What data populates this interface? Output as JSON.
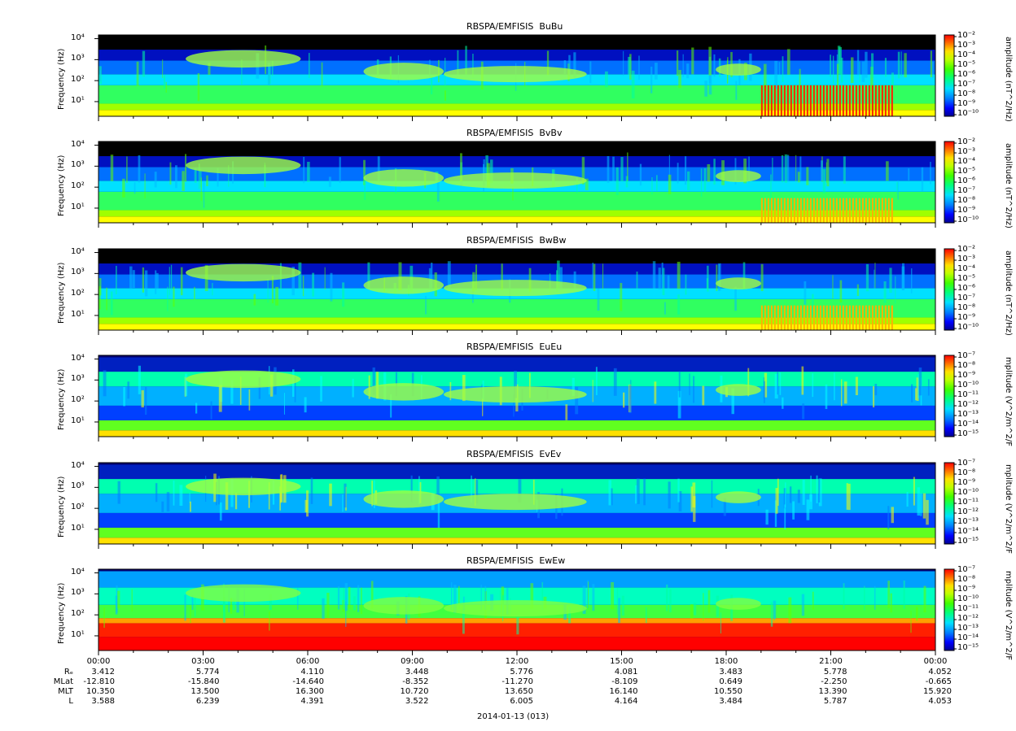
{
  "chart_data": {
    "type": "heatmap",
    "panels": [
      {
        "title": "RBSPA/EMFISIS  BuBu",
        "ylabel": "Frequency (Hz)",
        "cbar_label": "amplitude (nT^2/Hz)",
        "cbar_ticks": [
          "10⁻²",
          "10⁻³",
          "10⁻⁴",
          "10⁻⁵",
          "10⁻⁶",
          "10⁻⁷",
          "10⁻⁸",
          "10⁻⁹",
          "10⁻¹⁰"
        ],
        "yticks": [
          "10⁴",
          "10³",
          "10²",
          "10¹"
        ],
        "kind": "B"
      },
      {
        "title": "RBSPA/EMFISIS  BvBv",
        "ylabel": "Frequency (Hz)",
        "cbar_label": "amplitude (nT^2/Hz)",
        "cbar_ticks": [
          "10⁻²",
          "10⁻³",
          "10⁻⁴",
          "10⁻⁵",
          "10⁻⁶",
          "10⁻⁷",
          "10⁻⁸",
          "10⁻⁹",
          "10⁻¹⁰"
        ],
        "yticks": [
          "10⁴",
          "10³",
          "10²",
          "10¹"
        ],
        "kind": "B"
      },
      {
        "title": "RBSPA/EMFISIS  BwBw",
        "ylabel": "Frequency (Hz)",
        "cbar_label": "amplitude (nT^2/Hz)",
        "cbar_ticks": [
          "10⁻²",
          "10⁻³",
          "10⁻⁴",
          "10⁻⁵",
          "10⁻⁶",
          "10⁻⁷",
          "10⁻⁸",
          "10⁻⁹",
          "10⁻¹⁰"
        ],
        "yticks": [
          "10⁴",
          "10³",
          "10²",
          "10¹"
        ],
        "kind": "B"
      },
      {
        "title": "RBSPA/EMFISIS  EuEu",
        "ylabel": "Frequency (Hz)",
        "cbar_label": "mplitude (V^2/m^2/F",
        "cbar_ticks": [
          "10⁻⁷",
          "10⁻⁸",
          "10⁻⁹",
          "10⁻¹⁰",
          "10⁻¹¹",
          "10⁻¹²",
          "10⁻¹³",
          "10⁻¹⁴",
          "10⁻¹⁵"
        ],
        "yticks": [
          "10⁴",
          "10³",
          "10²",
          "10¹"
        ],
        "kind": "E"
      },
      {
        "title": "RBSPA/EMFISIS  EvEv",
        "ylabel": "Frequency (Hz)",
        "cbar_label": "mplitude (V^2/m^2/F",
        "cbar_ticks": [
          "10⁻⁷",
          "10⁻⁸",
          "10⁻⁹",
          "10⁻¹⁰",
          "10⁻¹¹",
          "10⁻¹²",
          "10⁻¹³",
          "10⁻¹⁴",
          "10⁻¹⁵"
        ],
        "yticks": [
          "10⁴",
          "10³",
          "10²",
          "10¹"
        ],
        "kind": "E"
      },
      {
        "title": "RBSPA/EMFISIS  EwEw",
        "ylabel": "Frequency (Hz)",
        "cbar_label": "mplitude (V^2/m^2/F",
        "cbar_ticks": [
          "10⁻⁷",
          "10⁻⁸",
          "10⁻⁹",
          "10⁻¹⁰",
          "10⁻¹¹",
          "10⁻¹²",
          "10⁻¹³",
          "10⁻¹⁴",
          "10⁻¹⁵"
        ],
        "yticks": [
          "10⁴",
          "10³",
          "10²",
          "10¹"
        ],
        "kind": "Ew"
      }
    ],
    "x_ticks": [
      "00:00",
      "03:00",
      "06:00",
      "09:00",
      "12:00",
      "15:00",
      "18:00",
      "21:00",
      "00:00"
    ],
    "x_hours": [
      0,
      3,
      6,
      9,
      12,
      15,
      18,
      21,
      24
    ],
    "ephemeris": [
      {
        "name": "Rₑ",
        "values": [
          "3.412",
          "5.774",
          "4.110",
          "3.448",
          "5.776",
          "4.081",
          "3.483",
          "5.778",
          "4.052"
        ]
      },
      {
        "name": "MLat",
        "values": [
          "-12.810",
          "-15.840",
          "-14.640",
          "-8.352",
          "-11.270",
          "-8.109",
          "0.649",
          "-2.250",
          "-0.665"
        ]
      },
      {
        "name": "MLT",
        "values": [
          "10.350",
          "13.500",
          "16.300",
          "10.720",
          "13.650",
          "16.140",
          "10.550",
          "13.390",
          "15.920"
        ]
      },
      {
        "name": "L",
        "values": [
          "3.588",
          "6.239",
          "4.391",
          "3.522",
          "6.005",
          "4.164",
          "3.484",
          "5.787",
          "4.053"
        ]
      }
    ],
    "date_label": "2014-01-13 (013)",
    "colormap": [
      "#000090",
      "#0000ff",
      "#0060ff",
      "#00c0ff",
      "#00ffc0",
      "#00ff40",
      "#80ff00",
      "#ffff00",
      "#ffa000",
      "#ff3000",
      "#ff0000"
    ],
    "yscale": "log",
    "ylim": [
      2,
      15000
    ]
  }
}
